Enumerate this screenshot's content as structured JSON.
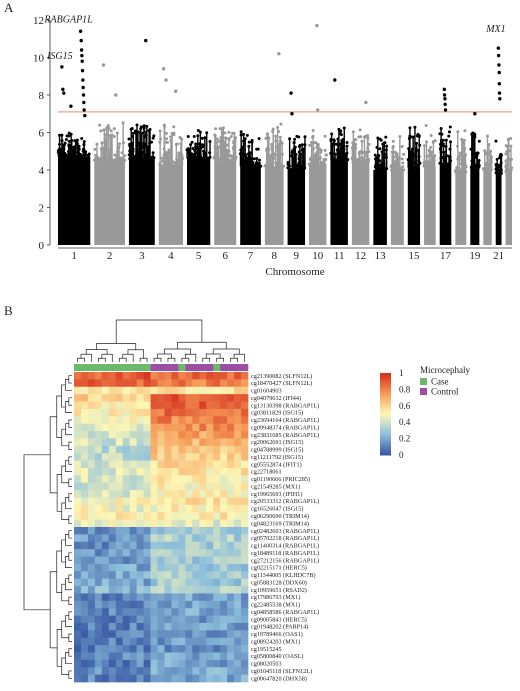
{
  "panel_a_label": "A",
  "panel_b_label": "B",
  "chart_data": [
    {
      "type": "scatter",
      "subtype": "manhattan",
      "xlabel": "Chromosome",
      "ylabel": "",
      "ylim": [
        0,
        12
      ],
      "yticks": [
        0,
        2,
        4,
        6,
        8,
        10,
        12
      ],
      "threshold": 7.1,
      "threshold_color": "#e8a090",
      "colors": {
        "odd": "#000000",
        "even": "#999999"
      },
      "chromosomes": [
        {
          "chr": 1,
          "label": "1",
          "bulk": 4.7,
          "peak": 6.0
        },
        {
          "chr": 2,
          "label": "2",
          "bulk": 4.5,
          "peak": 6.6
        },
        {
          "chr": 3,
          "label": "3",
          "bulk": 4.6,
          "peak": 6.5
        },
        {
          "chr": 4,
          "label": "4",
          "bulk": 4.3,
          "peak": 6.4
        },
        {
          "chr": 5,
          "label": "5",
          "bulk": 4.6,
          "peak": 6.2
        },
        {
          "chr": 6,
          "label": "6",
          "bulk": 4.5,
          "peak": 6.3
        },
        {
          "chr": 7,
          "label": "7",
          "bulk": 4.2,
          "peak": 6.2
        },
        {
          "chr": 8,
          "label": "8",
          "bulk": 4.2,
          "peak": 6.6
        },
        {
          "chr": 9,
          "label": "9",
          "bulk": 4.1,
          "peak": 5.8
        },
        {
          "chr": 10,
          "label": "10",
          "bulk": 4.3,
          "peak": 6.4
        },
        {
          "chr": 11,
          "label": "11",
          "bulk": 4.5,
          "peak": 6.3
        },
        {
          "chr": 12,
          "label": "12",
          "bulk": 4.4,
          "peak": 6.2
        },
        {
          "chr": 13,
          "label": "13",
          "bulk": 4.0,
          "peak": 5.8
        },
        {
          "chr": 14,
          "label": "",
          "bulk": 4.0,
          "peak": 6.0
        },
        {
          "chr": 15,
          "label": "15",
          "bulk": 4.1,
          "peak": 6.3
        },
        {
          "chr": 16,
          "label": "",
          "bulk": 4.2,
          "peak": 6.4
        },
        {
          "chr": 17,
          "label": "17",
          "bulk": 4.3,
          "peak": 6.6
        },
        {
          "chr": 18,
          "label": "",
          "bulk": 3.9,
          "peak": 6.1
        },
        {
          "chr": 19,
          "label": "19",
          "bulk": 4.1,
          "peak": 6.0
        },
        {
          "chr": 20,
          "label": "",
          "bulk": 4.0,
          "peak": 5.9
        },
        {
          "chr": 21,
          "label": "21",
          "bulk": 3.8,
          "peak": 5.6
        },
        {
          "chr": 22,
          "label": "",
          "bulk": 3.9,
          "peak": 5.8
        }
      ],
      "significant_points": [
        {
          "chr": 1,
          "pos": 0.12,
          "y": 9.5
        },
        {
          "chr": 1,
          "pos": 0.15,
          "y": 8.3
        },
        {
          "chr": 1,
          "pos": 0.18,
          "y": 8.1
        },
        {
          "chr": 1,
          "pos": 0.4,
          "y": 7.4
        },
        {
          "chr": 1,
          "pos": 0.7,
          "y": 11.4
        },
        {
          "chr": 1,
          "pos": 0.72,
          "y": 10.9
        },
        {
          "chr": 1,
          "pos": 0.73,
          "y": 10.4
        },
        {
          "chr": 1,
          "pos": 0.74,
          "y": 10.1
        },
        {
          "chr": 1,
          "pos": 0.75,
          "y": 9.8
        },
        {
          "chr": 1,
          "pos": 0.76,
          "y": 9.3
        },
        {
          "chr": 1,
          "pos": 0.77,
          "y": 8.8
        },
        {
          "chr": 1,
          "pos": 0.78,
          "y": 8.4
        },
        {
          "chr": 1,
          "pos": 0.79,
          "y": 8.0
        },
        {
          "chr": 1,
          "pos": 0.8,
          "y": 7.6
        },
        {
          "chr": 1,
          "pos": 0.81,
          "y": 7.2
        },
        {
          "chr": 1,
          "pos": 0.83,
          "y": 6.9
        },
        {
          "chr": 2,
          "pos": 0.3,
          "y": 9.6
        },
        {
          "chr": 2,
          "pos": 0.7,
          "y": 8.0
        },
        {
          "chr": 3,
          "pos": 0.65,
          "y": 10.9
        },
        {
          "chr": 4,
          "pos": 0.2,
          "y": 9.4
        },
        {
          "chr": 4,
          "pos": 0.3,
          "y": 8.8
        },
        {
          "chr": 4,
          "pos": 0.7,
          "y": 8.2
        },
        {
          "chr": 8,
          "pos": 0.75,
          "y": 10.2
        },
        {
          "chr": 9,
          "pos": 0.2,
          "y": 8.1
        },
        {
          "chr": 9,
          "pos": 0.25,
          "y": 7.0
        },
        {
          "chr": 10,
          "pos": 0.45,
          "y": 11.7
        },
        {
          "chr": 10,
          "pos": 0.5,
          "y": 7.2
        },
        {
          "chr": 11,
          "pos": 0.25,
          "y": 8.8
        },
        {
          "chr": 12,
          "pos": 0.8,
          "y": 7.6
        },
        {
          "chr": 17,
          "pos": 0.4,
          "y": 8.3
        },
        {
          "chr": 17,
          "pos": 0.42,
          "y": 8.0
        },
        {
          "chr": 17,
          "pos": 0.45,
          "y": 7.8
        },
        {
          "chr": 17,
          "pos": 0.47,
          "y": 7.5
        },
        {
          "chr": 17,
          "pos": 0.5,
          "y": 7.2
        },
        {
          "chr": 19,
          "pos": 0.5,
          "y": 7.0
        },
        {
          "chr": 21,
          "pos": 0.45,
          "y": 10.5
        },
        {
          "chr": 21,
          "pos": 0.5,
          "y": 10.1
        },
        {
          "chr": 21,
          "pos": 0.55,
          "y": 9.6
        },
        {
          "chr": 21,
          "pos": 0.6,
          "y": 9.2
        },
        {
          "chr": 21,
          "pos": 0.62,
          "y": 8.6
        },
        {
          "chr": 21,
          "pos": 0.65,
          "y": 8.1
        },
        {
          "chr": 21,
          "pos": 0.7,
          "y": 7.8
        }
      ],
      "annotations": [
        {
          "text": "ISG15",
          "chr": 1,
          "pos": 0.12,
          "y": 9.5
        },
        {
          "text": "RABGAP1L",
          "chr": 1,
          "pos": 0.7,
          "y": 11.4
        },
        {
          "text": "MX1",
          "chr": 21,
          "pos": 0.55,
          "y": 10.5
        }
      ]
    },
    {
      "type": "heatmap",
      "colorbar_ticks": [
        "1",
        "0.8",
        "0.6",
        "0.4",
        "0.2",
        "0"
      ],
      "colorscale": [
        "#3b5ba5",
        "#8fc1dc",
        "#fdf7b5",
        "#f69d59",
        "#d7301f"
      ],
      "legend_title": "Microcephaly",
      "legend_items": [
        {
          "label": "Case",
          "color": "#6aba6a"
        },
        {
          "label": "Control",
          "color": "#9b4ea4"
        }
      ],
      "columns": {
        "case": 11,
        "control": 14
      },
      "rows": [
        {
          "label": "cg21390082 (SLFN12L)",
          "case": 0.9,
          "control": 0.85
        },
        {
          "label": "cg18470427 (SLFN12L)",
          "case": 0.88,
          "control": 0.82
        },
        {
          "label": "cg01604903",
          "case": 0.55,
          "control": 0.55
        },
        {
          "label": "cg04079632 (IFI44)",
          "case": 0.6,
          "control": 0.9
        },
        {
          "label": "cg13130398 (RABGAP1L)",
          "case": 0.55,
          "control": 0.88
        },
        {
          "label": "cg03811829 (ISG15)",
          "case": 0.52,
          "control": 0.86
        },
        {
          "label": "cg23694164 (RABGAP1L)",
          "case": 0.48,
          "control": 0.8
        },
        {
          "label": "cg09948374 (RABGAP1L)",
          "case": 0.45,
          "control": 0.78
        },
        {
          "label": "cg23831685 (RABGAP1L)",
          "case": 0.42,
          "control": 0.72
        },
        {
          "label": "cg20062691 (ISG15)",
          "case": 0.4,
          "control": 0.68
        },
        {
          "label": "cg04788999 (ISG15)",
          "case": 0.35,
          "control": 0.62
        },
        {
          "label": "cg11211792 (ISG15)",
          "case": 0.35,
          "control": 0.6
        },
        {
          "label": "cg05552874 (IFIT1)",
          "case": 0.38,
          "control": 0.58
        },
        {
          "label": "cg22718061",
          "case": 0.42,
          "control": 0.55
        },
        {
          "label": "cg01190666 (PRIC285)",
          "case": 0.4,
          "control": 0.52
        },
        {
          "label": "cg21549285 (MX1)",
          "case": 0.38,
          "control": 0.5
        },
        {
          "label": "cg19965693 (IFIH1)",
          "case": 0.42,
          "control": 0.5
        },
        {
          "label": "cg20533312 (RABGAP1L)",
          "case": 0.5,
          "control": 0.55
        },
        {
          "label": "cg16526047 (ISG15)",
          "case": 0.48,
          "control": 0.52
        },
        {
          "label": "cg06290690 (TRIM14)",
          "case": 0.55,
          "control": 0.55
        },
        {
          "label": "cg04823169 (TRIM14)",
          "case": 0.45,
          "control": 0.45
        },
        {
          "label": "cg02482603 (RABGAP1L)",
          "case": 0.15,
          "control": 0.3
        },
        {
          "label": "cg05702218 (RABGAP1L)",
          "case": 0.15,
          "control": 0.32
        },
        {
          "label": "cg11400314 (RABGAP1L)",
          "case": 0.12,
          "control": 0.3
        },
        {
          "label": "cg18489118 (RABGAP1L)",
          "case": 0.15,
          "control": 0.32
        },
        {
          "label": "cg27212156 (RABGAP1L)",
          "case": 0.15,
          "control": 0.3
        },
        {
          "label": "cg02215171 (HERC5)",
          "case": 0.18,
          "control": 0.3
        },
        {
          "label": "cg11344005 (KLHDC7B)",
          "case": 0.2,
          "control": 0.32
        },
        {
          "label": "cg05883128 (DDX60)",
          "case": 0.18,
          "control": 0.3
        },
        {
          "label": "cg10959651 (RSAD2)",
          "case": 0.22,
          "control": 0.34
        },
        {
          "label": "cg17986793 (MX1)",
          "case": 0.1,
          "control": 0.18
        },
        {
          "label": "cg22485538 (MX1)",
          "case": 0.1,
          "control": 0.18
        },
        {
          "label": "cg04858586 (RABGAP1L)",
          "case": 0.1,
          "control": 0.18
        },
        {
          "label": "cg09005843 (HERC5)",
          "case": 0.08,
          "control": 0.16
        },
        {
          "label": "cg01948202 (PARP14)",
          "case": 0.1,
          "control": 0.18
        },
        {
          "label": "cg19789466 (OAS1)",
          "case": 0.08,
          "control": 0.15
        },
        {
          "label": "cg08924203 (MX1)",
          "case": 0.1,
          "control": 0.16
        },
        {
          "label": "cg19515245",
          "case": 0.08,
          "control": 0.14
        },
        {
          "label": "cg05800840 (OASL)",
          "case": 0.12,
          "control": 0.2
        },
        {
          "label": "cg08020503",
          "case": 0.1,
          "control": 0.18
        },
        {
          "label": "cg01045118 (SLFN12L)",
          "case": 0.12,
          "control": 0.2
        },
        {
          "label": "cg00647820 (DHX58)",
          "case": 0.1,
          "control": 0.18
        }
      ]
    }
  ]
}
